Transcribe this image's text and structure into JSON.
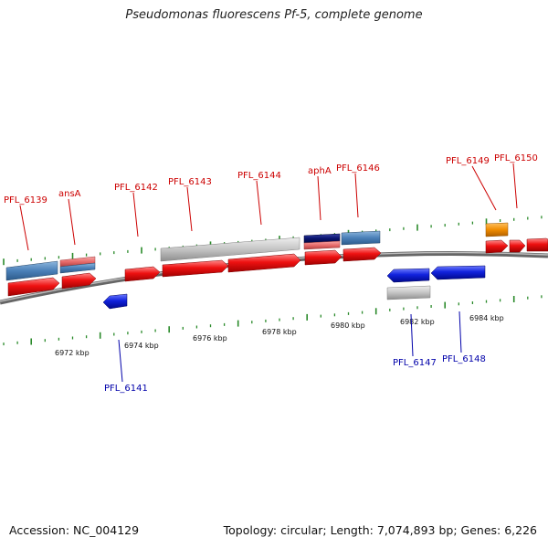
{
  "title": "Pseudomonas fluorescens Pf-5, complete genome",
  "footer": {
    "accession": "Accession: NC_004129",
    "stats": "Topology: circular; Length: 7,074,893 bp; Genes: 6,226"
  },
  "colors": {
    "fwd_cds": "#ee1111",
    "rev_cds": "#1122dd",
    "gene_blue": "#4a80b8",
    "gene_grey": "#c4c4c4",
    "gene_pink": "#e86c6c",
    "gene_navy": "#0a1470",
    "gene_orange": "#f08c00",
    "backbone": "#7a7a7a",
    "tick_green": "#2a8a2a",
    "fwd_label": "#cc0000",
    "rev_label": "#0000aa"
  },
  "ticks": [
    "6972 kbp",
    "6974 kbp",
    "6976 kbp",
    "6978 kbp",
    "6980 kbp",
    "6982 kbp",
    "6984 kbp"
  ],
  "forward_labels": [
    "PFL_6139",
    "ansA",
    "PFL_6142",
    "PFL_6143",
    "PFL_6144",
    "aphA",
    "PFL_6146",
    "PFL_6149",
    "PFL_6150"
  ],
  "reverse_labels": [
    "PFL_6141",
    "PFL_6147",
    "PFL_6148"
  ]
}
